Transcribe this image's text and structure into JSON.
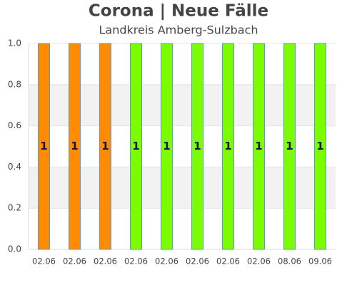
{
  "chart_data": {
    "type": "bar",
    "title": "Corona | Neue Fälle",
    "subtitle": "Landkreis Amberg-Sulzbach",
    "categories": [
      "02.06",
      "02.06",
      "02.06",
      "02.06",
      "02.06",
      "02.06",
      "02.06",
      "02.06",
      "08.06",
      "09.06"
    ],
    "values": [
      1,
      1,
      1,
      1,
      1,
      1,
      1,
      1,
      1,
      1
    ],
    "colors": [
      "#ff8c00",
      "#ff8c00",
      "#ff8c00",
      "#7cfc00",
      "#7cfc00",
      "#7cfc00",
      "#7cfc00",
      "#7cfc00",
      "#7cfc00",
      "#7cfc00"
    ],
    "ylim": [
      0,
      1
    ],
    "yticks": [
      {
        "value": 0,
        "label": "0.0"
      },
      {
        "value": 0.2,
        "label": "0.2"
      },
      {
        "value": 0.4,
        "label": "0.4"
      },
      {
        "value": 0.6,
        "label": "0.6"
      },
      {
        "value": 0.8,
        "label": "0.8"
      },
      {
        "value": 1,
        "label": "1.0"
      }
    ],
    "grid": true
  }
}
